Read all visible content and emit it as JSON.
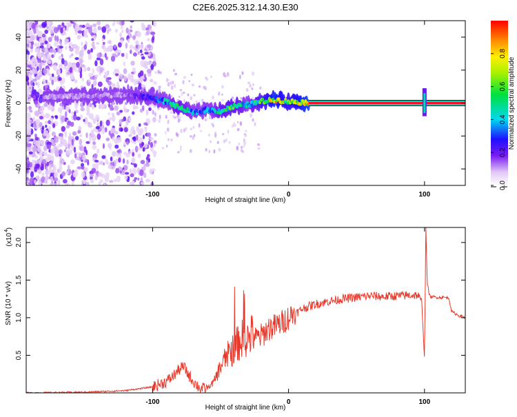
{
  "title": "C2E6.2025.312.14.30.E30",
  "chart_data": [
    {
      "type": "heatmap",
      "xlabel": "Height of straight line (km)",
      "ylabel": "Frequency (Hz)",
      "xlim": [
        -193,
        130
      ],
      "ylim": [
        -50,
        50
      ],
      "xticks": [
        -100,
        0,
        100
      ],
      "yticks": [
        -40,
        -20,
        0,
        20,
        40
      ],
      "colorbar": {
        "label": "Normalized spectral amplitude",
        "range": [
          0.0,
          1.0
        ],
        "ticks": [
          0.0,
          0.2,
          0.4,
          0.6,
          0.8
        ]
      },
      "ridge": {
        "points": [
          {
            "x": -160,
            "y": 4,
            "a": 0.12
          },
          {
            "x": -120,
            "y": 5,
            "a": 0.15
          },
          {
            "x": -100,
            "y": 3,
            "a": 0.3
          },
          {
            "x": -90,
            "y": 1,
            "a": 0.45
          },
          {
            "x": -80,
            "y": -3,
            "a": 0.55
          },
          {
            "x": -70,
            "y": -6,
            "a": 0.45
          },
          {
            "x": -60,
            "y": -4,
            "a": 0.4
          },
          {
            "x": -50,
            "y": -5,
            "a": 0.55
          },
          {
            "x": -40,
            "y": -2,
            "a": 0.6
          },
          {
            "x": -30,
            "y": -1,
            "a": 0.45
          },
          {
            "x": -20,
            "y": 1,
            "a": 0.65
          },
          {
            "x": -10,
            "y": 2,
            "a": 0.85
          },
          {
            "x": 0,
            "y": 1,
            "a": 0.7
          },
          {
            "x": 20,
            "y": 0,
            "a": 0.97
          },
          {
            "x": 100,
            "y": 0,
            "a": 0.97
          },
          {
            "x": 130,
            "y": 0,
            "a": 0.97
          }
        ]
      }
    },
    {
      "type": "line",
      "xlabel": "Height of straight line (km)",
      "ylabel": "SNR (10 * v/v)",
      "yscale_label": "(x10",
      "yscale_exp": "4",
      "xlim": [
        -193,
        130
      ],
      "ylim": [
        0,
        2.2
      ],
      "xticks": [
        -100,
        0,
        100
      ],
      "yticks": [
        0.5,
        1.0,
        1.5,
        2.0
      ],
      "ytick_labels": [
        "0.5",
        "1.0",
        "1.5",
        "2.0"
      ],
      "series": [
        {
          "name": "SNR",
          "color": "#e8382a",
          "x": [
            -193,
            -150,
            -120,
            -100,
            -90,
            -85,
            -80,
            -77,
            -74,
            -70,
            -65,
            -60,
            -55,
            -50,
            -45,
            -40,
            -35,
            -30,
            -25,
            -20,
            -15,
            -10,
            -5,
            0,
            5,
            10,
            20,
            30,
            40,
            50,
            60,
            70,
            80,
            90,
            95,
            98,
            100,
            101,
            102,
            104,
            110,
            115,
            118,
            120,
            125,
            130
          ],
          "y": [
            0.0,
            0.01,
            0.03,
            0.08,
            0.15,
            0.22,
            0.32,
            0.35,
            0.25,
            0.15,
            0.06,
            0.05,
            0.12,
            0.3,
            0.42,
            0.5,
            0.6,
            0.62,
            0.68,
            0.72,
            0.82,
            0.85,
            0.9,
            0.97,
            1.05,
            1.12,
            1.18,
            1.22,
            1.25,
            1.27,
            1.29,
            1.28,
            1.29,
            1.3,
            1.3,
            1.2,
            0.45,
            2.2,
            1.45,
            1.28,
            1.27,
            1.27,
            1.26,
            1.08,
            1.03,
            1.0
          ]
        }
      ]
    }
  ]
}
